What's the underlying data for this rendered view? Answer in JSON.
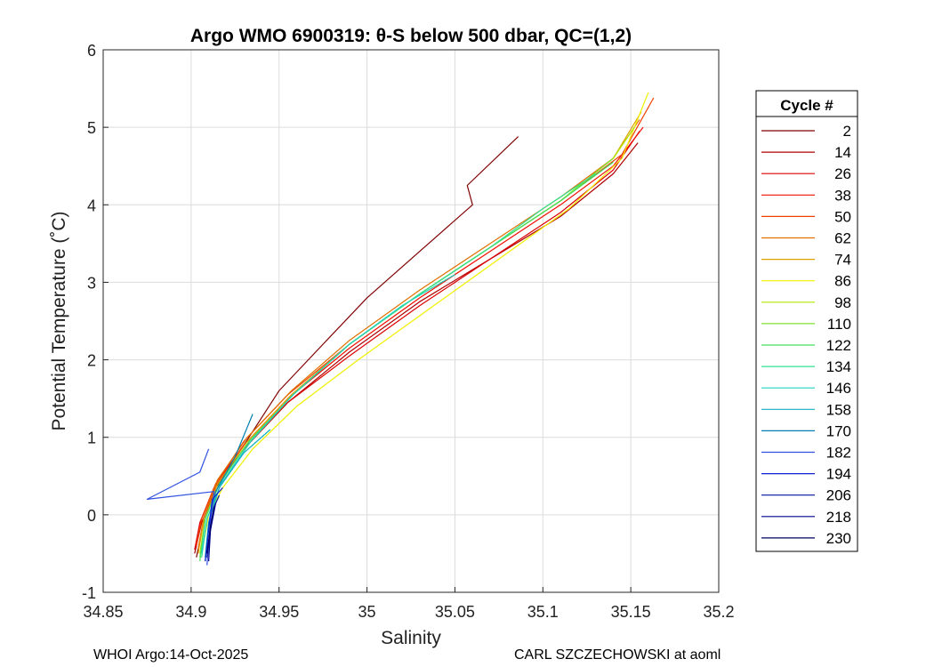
{
  "chart_data": {
    "type": "line",
    "title": "Argo WMO 6900319: θ-S below 500 dbar,  QC=(1,2)",
    "xlabel": "Salinity",
    "ylabel": "Potential Temperature (˚C)",
    "xlim": [
      34.85,
      35.2
    ],
    "ylim": [
      -1,
      6
    ],
    "xticks": [
      "34.85",
      "34.9",
      "34.95",
      "35",
      "35.05",
      "35.1",
      "35.15",
      "35.2"
    ],
    "yticks": [
      "-1",
      "0",
      "1",
      "2",
      "3",
      "4",
      "5",
      "6"
    ],
    "grid": true,
    "legend": {
      "title": "Cycle #",
      "placement": "right",
      "entries": [
        "2",
        "14",
        "26",
        "38",
        "50",
        "62",
        "74",
        "86",
        "98",
        "110",
        "122",
        "134",
        "146",
        "158",
        "170",
        "182",
        "194",
        "206",
        "218",
        "230"
      ]
    },
    "series": [
      {
        "name": "2",
        "color": "#800000",
        "x": [
          34.903,
          34.907,
          34.915,
          34.93,
          34.95,
          34.975,
          35.0,
          35.03,
          35.06,
          35.057,
          35.086
        ],
        "y": [
          -0.55,
          -0.1,
          0.4,
          0.9,
          1.6,
          2.2,
          2.8,
          3.4,
          4.0,
          4.25,
          4.88
        ]
      },
      {
        "name": "14",
        "color": "#b00000",
        "x": [
          34.902,
          34.906,
          34.914,
          34.93,
          34.955,
          34.99,
          35.03,
          35.07,
          35.11,
          35.14,
          35.154
        ],
        "y": [
          -0.5,
          -0.1,
          0.35,
          0.85,
          1.45,
          2.1,
          2.75,
          3.3,
          3.85,
          4.4,
          4.8
        ]
      },
      {
        "name": "26",
        "color": "#dc0000",
        "x": [
          34.902,
          34.905,
          34.913,
          34.93,
          34.955,
          34.99,
          35.03,
          35.07,
          35.11,
          35.14,
          35.155
        ],
        "y": [
          -0.45,
          -0.1,
          0.35,
          0.85,
          1.45,
          2.05,
          2.7,
          3.3,
          3.9,
          4.45,
          4.95
        ]
      },
      {
        "name": "38",
        "color": "#f01000",
        "x": [
          34.903,
          34.906,
          34.914,
          34.93,
          34.955,
          34.99,
          35.03,
          35.07,
          35.11,
          35.14,
          35.157
        ],
        "y": [
          -0.4,
          -0.05,
          0.4,
          0.9,
          1.5,
          2.15,
          2.8,
          3.4,
          4.0,
          4.5,
          5.0
        ]
      },
      {
        "name": "50",
        "color": "#f04000",
        "x": [
          34.903,
          34.906,
          34.914,
          34.93,
          34.955,
          34.99,
          35.03,
          35.07,
          35.11,
          35.145,
          35.163
        ],
        "y": [
          -0.4,
          -0.05,
          0.4,
          0.95,
          1.55,
          2.2,
          2.85,
          3.45,
          4.05,
          4.65,
          5.38
        ]
      },
      {
        "name": "62",
        "color": "#e07000",
        "x": [
          34.904,
          34.907,
          34.915,
          34.932,
          34.957,
          34.99,
          35.03,
          35.07,
          35.11,
          35.14,
          35.155
        ],
        "y": [
          -0.45,
          -0.05,
          0.45,
          1.0,
          1.6,
          2.25,
          2.9,
          3.5,
          4.1,
          4.6,
          5.1
        ]
      },
      {
        "name": "74",
        "color": "#e0a000",
        "x": [
          34.904,
          34.907,
          34.915,
          34.932,
          34.957,
          34.99,
          35.03,
          35.07,
          35.11,
          35.14,
          35.156
        ],
        "y": [
          -0.5,
          -0.1,
          0.4,
          0.95,
          1.55,
          2.2,
          2.85,
          3.45,
          4.05,
          4.6,
          5.2
        ]
      },
      {
        "name": "86",
        "color": "#f0f000",
        "x": [
          34.906,
          34.91,
          34.918,
          34.935,
          34.96,
          34.995,
          35.035,
          35.075,
          35.115,
          35.145,
          35.16
        ],
        "y": [
          -0.5,
          0.0,
          0.35,
          0.85,
          1.4,
          2.0,
          2.65,
          3.3,
          3.95,
          4.6,
          5.45
        ]
      },
      {
        "name": "98",
        "color": "#b0e800",
        "x": [
          34.905,
          34.908,
          34.916,
          34.933,
          34.958,
          34.99,
          35.03,
          35.07,
          35.11,
          35.14,
          35.152
        ],
        "y": [
          -0.5,
          -0.05,
          0.4,
          0.95,
          1.55,
          2.2,
          2.85,
          3.45,
          4.05,
          4.6,
          5.0
        ]
      },
      {
        "name": "110",
        "color": "#80e030",
        "x": [
          34.905,
          34.908,
          34.916,
          34.933,
          34.958,
          34.99,
          35.03,
          35.07,
          35.11,
          35.14
        ],
        "y": [
          -0.55,
          -0.05,
          0.4,
          0.95,
          1.55,
          2.2,
          2.85,
          3.45,
          4.05,
          4.6
        ]
      },
      {
        "name": "122",
        "color": "#40e060",
        "x": [
          34.905,
          34.908,
          34.916,
          34.933,
          34.958,
          34.99,
          35.03,
          35.07,
          35.11,
          35.14
        ],
        "y": [
          -0.6,
          -0.05,
          0.4,
          0.95,
          1.55,
          2.2,
          2.85,
          3.45,
          4.05,
          4.55
        ]
      },
      {
        "name": "134",
        "color": "#30e090",
        "x": [
          34.906,
          34.909,
          34.917,
          34.934,
          34.958,
          34.99,
          35.03,
          35.07,
          35.1,
          35.13
        ],
        "y": [
          -0.55,
          -0.05,
          0.4,
          0.95,
          1.55,
          2.2,
          2.85,
          3.45,
          3.95,
          4.4
        ]
      },
      {
        "name": "146",
        "color": "#20d0c0",
        "x": [
          34.906,
          34.909,
          34.917,
          34.934,
          34.958,
          34.99,
          35.02,
          35.05
        ],
        "y": [
          -0.5,
          -0.05,
          0.4,
          0.95,
          1.55,
          2.2,
          2.7,
          3.1
        ]
      },
      {
        "name": "158",
        "color": "#10b0c0",
        "x": [
          34.908,
          34.91,
          34.916,
          34.93,
          34.945
        ],
        "y": [
          -0.55,
          -0.1,
          0.35,
          0.8,
          1.1
        ]
      },
      {
        "name": "170",
        "color": "#0080b0",
        "x": [
          34.908,
          34.91,
          34.914,
          34.925,
          34.935
        ],
        "y": [
          -0.6,
          -0.1,
          0.3,
          0.75,
          1.3
        ]
      },
      {
        "name": "182",
        "color": "#3050e0",
        "x": [
          34.909,
          34.911,
          34.913,
          34.875,
          34.905,
          34.91
        ],
        "y": [
          -0.65,
          -0.1,
          0.3,
          0.2,
          0.55,
          0.85
        ]
      },
      {
        "name": "194",
        "color": "#1020d0",
        "x": [
          34.908,
          34.91,
          34.912,
          34.918
        ],
        "y": [
          -0.6,
          -0.2,
          0.2,
          0.35
        ]
      },
      {
        "name": "206",
        "color": "#0010a0",
        "x": [
          34.909,
          34.911,
          34.913,
          34.916
        ],
        "y": [
          -0.55,
          -0.2,
          0.1,
          0.25
        ]
      },
      {
        "name": "218",
        "color": "#000090",
        "x": [
          34.91,
          34.911,
          34.914
        ],
        "y": [
          -0.6,
          -0.2,
          0.15
        ]
      },
      {
        "name": "230",
        "color": "#000060",
        "x": [
          34.909,
          34.911,
          34.913
        ],
        "y": [
          -0.5,
          -0.15,
          0.1
        ]
      }
    ]
  },
  "footer": {
    "left": "WHOI Argo:14-Oct-2025",
    "right": "CARL SZCZECHOWSKI at aoml"
  }
}
